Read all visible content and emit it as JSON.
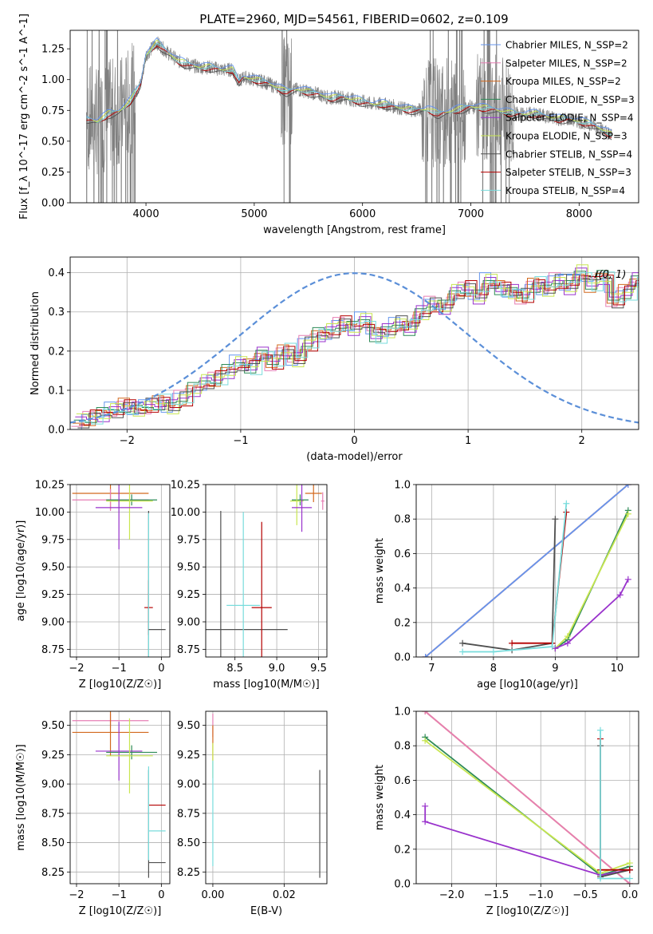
{
  "figure_title": "PLATE=2960, MJD=54561, FIBERID=0602, z=0.109",
  "colors": {
    "Chabrier MILES": "#6495ed",
    "Salpeter MILES": "#e67eb4",
    "Kroupa MILES": "#d2691e",
    "Chabrier ELODIE": "#2e8b57",
    "Salpeter ELODIE": "#9932cc",
    "Kroupa ELODIE": "#c8e650",
    "Chabrier STELIB": "#505050",
    "Salpeter STELIB": "#b40000",
    "Kroupa STELIB": "#78dcdc",
    "data": "#808080",
    "gauss": "#5b8fd8"
  },
  "chart_data": [
    {
      "id": "spectrum",
      "type": "line",
      "title": "",
      "xlabel": "wavelength [Angstrom, rest frame]",
      "ylabel": "Flux [f_λ 10^-17 erg cm^-2 s^-1 A^-1]",
      "xlim": [
        3300,
        8550
      ],
      "ylim": [
        0,
        1.4
      ],
      "xticks": [
        4000,
        5000,
        6000,
        7000,
        8000
      ],
      "yticks": [
        0.0,
        0.25,
        0.5,
        0.75,
        1.0,
        1.25
      ],
      "legend": [
        "Chabrier MILES, N_SSP=2",
        "Salpeter MILES, N_SSP=2",
        "Kroupa MILES, N_SSP=2",
        "Chabrier ELODIE, N_SSP=3",
        "Salpeter ELODIE, N_SSP=4",
        "Kroupa ELODIE, N_SSP=3",
        "Chabrier STELIB, N_SSP=4",
        "Salpeter STELIB, N_SSP=3",
        "Kroupa STELIB, N_SSP=4"
      ],
      "legend_loc": "right",
      "model_continuum": {
        "x": [
          3450,
          3550,
          3650,
          3750,
          3850,
          3950,
          4000,
          4100,
          4200,
          4300,
          4400,
          4500,
          4600,
          4700,
          4800,
          4860,
          4900,
          5000,
          5100,
          5200,
          5300,
          5400,
          5500,
          5600,
          5700,
          5800,
          5900,
          6000,
          6100,
          6200,
          6300,
          6400,
          6500,
          6600,
          6700,
          6800,
          6900,
          7000,
          7100,
          7200,
          7300,
          7400,
          7500,
          7600,
          7700,
          7800,
          7900,
          8000,
          8100,
          8200,
          8300
        ],
        "y": [
          0.68,
          0.66,
          0.72,
          0.74,
          0.82,
          0.96,
          1.2,
          1.3,
          1.22,
          1.15,
          1.12,
          1.1,
          1.1,
          1.08,
          1.08,
          0.98,
          1.02,
          1.0,
          0.98,
          0.94,
          0.9,
          0.92,
          0.9,
          0.88,
          0.85,
          0.86,
          0.84,
          0.82,
          0.8,
          0.8,
          0.78,
          0.76,
          0.75,
          0.76,
          0.72,
          0.74,
          0.76,
          0.78,
          0.77,
          0.76,
          0.74,
          0.72,
          0.72,
          0.72,
          0.7,
          0.68,
          0.68,
          0.66,
          0.64,
          0.6,
          0.55
        ]
      },
      "masked_regions": [
        [
          3450,
          3900
        ],
        [
          5250,
          5350
        ],
        [
          6550,
          6950
        ],
        [
          7050,
          7400
        ]
      ]
    },
    {
      "id": "residuals",
      "type": "histogram",
      "xlabel": "(data-model)/error",
      "ylabel": "Normed distribution",
      "xlim": [
        -2.5,
        2.5
      ],
      "ylim": [
        0,
        0.44
      ],
      "xticks": [
        -2,
        -1,
        0,
        1,
        2
      ],
      "yticks": [
        0.0,
        0.1,
        0.2,
        0.3,
        0.4
      ],
      "legend": [
        "𝒩(0, 1)"
      ],
      "legend_loc": "top-right",
      "bin_width": 0.1,
      "bin_start": -2.5,
      "base_hist": [
        0.02,
        0.03,
        0.04,
        0.05,
        0.06,
        0.05,
        0.06,
        0.07,
        0.06,
        0.08,
        0.1,
        0.12,
        0.13,
        0.15,
        0.17,
        0.16,
        0.19,
        0.17,
        0.2,
        0.18,
        0.22,
        0.24,
        0.25,
        0.27,
        0.26,
        0.28,
        0.24,
        0.25,
        0.27,
        0.26,
        0.3,
        0.32,
        0.31,
        0.35,
        0.36,
        0.34,
        0.38,
        0.36,
        0.35,
        0.34,
        0.37,
        0.36,
        0.38,
        0.36,
        0.4,
        0.37,
        0.39,
        0.33,
        0.35,
        0.38,
        0.35,
        0.37,
        0.33,
        0.4,
        0.33,
        0.34,
        0.28,
        0.31,
        0.27,
        0.26,
        0.22,
        0.24,
        0.23,
        0.24,
        0.28,
        0.25,
        0.19,
        0.22,
        0.17,
        0.16,
        0.16,
        0.16,
        0.14,
        0.14,
        0.13,
        0.12,
        0.13,
        0.1,
        0.08,
        0.09,
        0.08,
        0.07,
        0.07,
        0.06,
        0.06,
        0.06,
        0.06,
        0.05,
        0.05,
        0.07,
        0.05,
        0.04,
        0.05,
        0.04,
        0.04,
        0.05,
        0.04,
        0.03,
        0.04,
        0.04
      ]
    },
    {
      "id": "age_vs_Z",
      "type": "errorbar",
      "xlabel": "Z [log10(Z/Z☉)]",
      "ylabel": "age [log10(age/yr)]",
      "xlim": [
        -2.15,
        0.2
      ],
      "ylim": [
        8.68,
        10.25
      ],
      "xticks": [
        -2,
        -1,
        0
      ],
      "yticks": [
        8.75,
        9.0,
        9.25,
        9.5,
        9.75,
        10.0,
        10.25
      ],
      "points": [
        {
          "model": "Kroupa MILES",
          "x": -1.2,
          "xerr": 0.9,
          "y": 10.17,
          "yerr": 0.15
        },
        {
          "model": "Salpeter MILES",
          "x": -1.2,
          "xerr": 0.9,
          "y": 10.11,
          "yerr": 0.1
        },
        {
          "model": "Chabrier ELODIE",
          "x": -0.7,
          "xerr": 0.6,
          "y": 10.11,
          "yerr": 0.05
        },
        {
          "model": "Kroupa ELODIE",
          "x": -0.75,
          "xerr": 0.55,
          "y": 10.1,
          "yerr": 0.35
        },
        {
          "model": "Salpeter ELODIE",
          "x": -1.0,
          "xerr": 0.55,
          "y": 10.04,
          "yerr": 0.38
        },
        {
          "model": "Chabrier STELIB",
          "x": -0.3,
          "xerr": 0.0,
          "y": 8.93,
          "yerr": 1.08
        },
        {
          "model": "Salpeter STELIB",
          "x": -0.3,
          "xerr": 0.1,
          "y": 9.13,
          "yerr": 0.25
        },
        {
          "model": "Kroupa STELIB",
          "x": -0.3,
          "xerr": 0.0,
          "y": 9.14,
          "yerr": 0.85
        },
        {
          "model": "Chabrier STELIB",
          "x": -0.1,
          "xerr": 0.2,
          "y": 8.93,
          "yerr": 0.0
        }
      ]
    },
    {
      "id": "age_vs_mass",
      "type": "errorbar",
      "xlabel": "mass [log10(M/M☉)]",
      "ylabel": "",
      "xlim": [
        8.15,
        9.6
      ],
      "ylim": [
        8.68,
        10.25
      ],
      "xticks": [
        8.5,
        9.0,
        9.5
      ],
      "yticks": [
        8.75,
        9.0,
        9.25,
        9.5,
        9.75,
        10.0,
        10.25
      ],
      "points": [
        {
          "model": "Salpeter MILES",
          "x": 9.55,
          "xerr": 0.02,
          "y": 10.1,
          "yerr": 0.08
        },
        {
          "model": "Kroupa MILES",
          "x": 9.44,
          "xerr": 0.1,
          "y": 10.17,
          "yerr": 0.08
        },
        {
          "model": "Chabrier ELODIE",
          "x": 9.28,
          "xerr": 0.1,
          "y": 10.11,
          "yerr": 0.05
        },
        {
          "model": "Kroupa ELODIE",
          "x": 9.24,
          "xerr": 0.08,
          "y": 10.1,
          "yerr": 0.22
        },
        {
          "model": "Salpeter ELODIE",
          "x": 9.3,
          "xerr": 0.12,
          "y": 10.04,
          "yerr": 0.22
        },
        {
          "model": "Chabrier STELIB",
          "x": 8.33,
          "xerr": 0.8,
          "y": 8.93,
          "yerr": 1.08
        },
        {
          "model": "Salpeter STELIB",
          "x": 8.82,
          "xerr": 0.12,
          "y": 9.13,
          "yerr": 0.78
        },
        {
          "model": "Kroupa STELIB",
          "x": 8.6,
          "xerr": 0.2,
          "y": 9.15,
          "yerr": 0.85
        }
      ]
    },
    {
      "id": "weight_vs_age",
      "type": "line",
      "xlabel": "age [log10(age/yr)]",
      "ylabel": "mass weight",
      "xlim": [
        6.75,
        10.35
      ],
      "ylim": [
        0,
        1.0
      ],
      "xticks": [
        7,
        8,
        9,
        10
      ],
      "yticks": [
        0.0,
        0.2,
        0.4,
        0.6,
        0.8,
        1.0
      ],
      "series": [
        {
          "model": "Kroupa MILES",
          "x": [
            6.9,
            10.18
          ],
          "y": [
            0.0,
            1.0
          ]
        },
        {
          "model": "Salpeter MILES",
          "x": [
            6.9,
            10.18
          ],
          "y": [
            0.0,
            1.0
          ]
        },
        {
          "model": "Chabrier MILES",
          "x": [
            6.9,
            10.18
          ],
          "y": [
            0.0,
            1.0
          ]
        },
        {
          "model": "Chabrier ELODIE",
          "x": [
            9.0,
            9.2,
            10.18
          ],
          "y": [
            0.05,
            0.1,
            0.85
          ]
        },
        {
          "model": "Kroupa ELODIE",
          "x": [
            9.0,
            9.2,
            10.18
          ],
          "y": [
            0.05,
            0.12,
            0.83
          ]
        },
        {
          "model": "Salpeter ELODIE",
          "x": [
            9.0,
            9.2,
            10.05,
            10.18
          ],
          "y": [
            0.05,
            0.08,
            0.36,
            0.45
          ]
        },
        {
          "model": "Chabrier STELIB",
          "x": [
            7.5,
            8.3,
            8.95,
            9.0
          ],
          "y": [
            0.08,
            0.04,
            0.08,
            0.8
          ]
        },
        {
          "model": "Salpeter STELIB",
          "x": [
            8.3,
            8.95,
            9.18
          ],
          "y": [
            0.08,
            0.08,
            0.84
          ]
        },
        {
          "model": "Kroupa STELIB",
          "x": [
            7.5,
            8.0,
            8.95,
            9.18
          ],
          "y": [
            0.03,
            0.03,
            0.06,
            0.89
          ]
        }
      ]
    },
    {
      "id": "mass_vs_Z",
      "type": "errorbar",
      "xlabel": "Z [log10(Z/Z☉)]",
      "ylabel": "mass [log10(M/M☉)]",
      "xlim": [
        -2.15,
        0.2
      ],
      "ylim": [
        8.15,
        9.62
      ],
      "xticks": [
        -2,
        -1,
        0
      ],
      "yticks": [
        8.25,
        8.5,
        8.75,
        9.0,
        9.25,
        9.5
      ],
      "points": [
        {
          "model": "Salpeter MILES",
          "x": -1.2,
          "xerr": 0.9,
          "y": 9.54,
          "yerr": 0.06
        },
        {
          "model": "Kroupa MILES",
          "x": -1.2,
          "xerr": 0.9,
          "y": 9.44,
          "yerr": 0.2
        },
        {
          "model": "Chabrier ELODIE",
          "x": -0.7,
          "xerr": 0.6,
          "y": 9.27,
          "yerr": 0.06
        },
        {
          "model": "Salpeter ELODIE",
          "x": -1.0,
          "xerr": 0.55,
          "y": 9.28,
          "yerr": 0.25
        },
        {
          "model": "Kroupa ELODIE",
          "x": -0.75,
          "xerr": 0.55,
          "y": 9.24,
          "yerr": 0.32
        },
        {
          "model": "Chabrier STELIB",
          "x": -0.1,
          "xerr": 0.2,
          "y": 8.33,
          "yerr": 0.0
        },
        {
          "model": "Chabrier STELIB",
          "x": -0.3,
          "xerr": 0.0,
          "y": 8.66,
          "yerr": 0.46
        },
        {
          "model": "Salpeter STELIB",
          "x": -0.1,
          "xerr": 0.2,
          "y": 8.82,
          "yerr": 0.0
        },
        {
          "model": "Kroupa STELIB",
          "x": -0.1,
          "xerr": 0.2,
          "y": 8.6,
          "yerr": 0.0
        },
        {
          "model": "Kroupa STELIB",
          "x": -0.3,
          "xerr": 0.0,
          "y": 8.75,
          "yerr": 0.4
        }
      ]
    },
    {
      "id": "mass_vs_EBV",
      "type": "errorbar",
      "xlabel": "E(B-V)",
      "ylabel": "",
      "xlim": [
        -0.002,
        0.032
      ],
      "ylim": [
        8.15,
        9.62
      ],
      "xticks": [
        0.0,
        0.02
      ],
      "yticks": [
        8.25,
        8.5,
        8.75,
        9.0,
        9.25,
        9.5
      ],
      "points": [
        {
          "model": "Salpeter MILES",
          "x": 0.0,
          "xerr": 0.0,
          "y": 9.5,
          "yerr": 0.1
        },
        {
          "model": "Kroupa MILES",
          "x": 0.0,
          "xerr": 0.0,
          "y": 9.35,
          "yerr": 0.15
        },
        {
          "model": "Kroupa ELODIE",
          "x": 0.0,
          "xerr": 0.0,
          "y": 9.2,
          "yerr": 0.15
        },
        {
          "model": "Kroupa STELIB",
          "x": 0.0,
          "xerr": 0.0,
          "y": 8.75,
          "yerr": 0.45
        },
        {
          "model": "Chabrier STELIB",
          "x": 0.03,
          "xerr": 0.0,
          "y": 8.66,
          "yerr": 0.46
        }
      ]
    },
    {
      "id": "weight_vs_Z",
      "type": "line",
      "xlabel": "Z [log10(Z/Z☉)]",
      "ylabel": "mass weight",
      "xlim": [
        -2.4,
        0.1
      ],
      "ylim": [
        0,
        1.0
      ],
      "xticks": [
        -2.0,
        -1.5,
        -1.0,
        -0.5,
        0.0
      ],
      "yticks": [
        0.0,
        0.2,
        0.4,
        0.6,
        0.8,
        1.0
      ],
      "series": [
        {
          "model": "Kroupa MILES",
          "x": [
            -2.3,
            0.0
          ],
          "y": [
            1.0,
            0.0
          ]
        },
        {
          "model": "Salpeter MILES",
          "x": [
            -2.3,
            0.0
          ],
          "y": [
            1.0,
            0.0
          ]
        },
        {
          "model": "Chabrier ELODIE",
          "x": [
            -2.3,
            -0.33,
            0.0
          ],
          "y": [
            0.85,
            0.05,
            0.1
          ]
        },
        {
          "model": "Kroupa ELODIE",
          "x": [
            -2.3,
            -0.33,
            0.0
          ],
          "y": [
            0.83,
            0.06,
            0.12
          ]
        },
        {
          "model": "Salpeter ELODIE",
          "x": [
            -2.3,
            -2.3,
            -0.33,
            0.0
          ],
          "y": [
            0.45,
            0.36,
            0.05,
            0.08
          ]
        },
        {
          "model": "Chabrier STELIB",
          "x": [
            -0.33,
            -0.33,
            0.0
          ],
          "y": [
            0.8,
            0.04,
            0.08
          ]
        },
        {
          "model": "Salpeter STELIB",
          "x": [
            -0.33,
            -0.33,
            0.0
          ],
          "y": [
            0.84,
            0.08,
            0.08
          ]
        },
        {
          "model": "Kroupa STELIB",
          "x": [
            -0.33,
            -0.33,
            0.0
          ],
          "y": [
            0.89,
            0.03,
            0.03
          ]
        }
      ]
    }
  ]
}
